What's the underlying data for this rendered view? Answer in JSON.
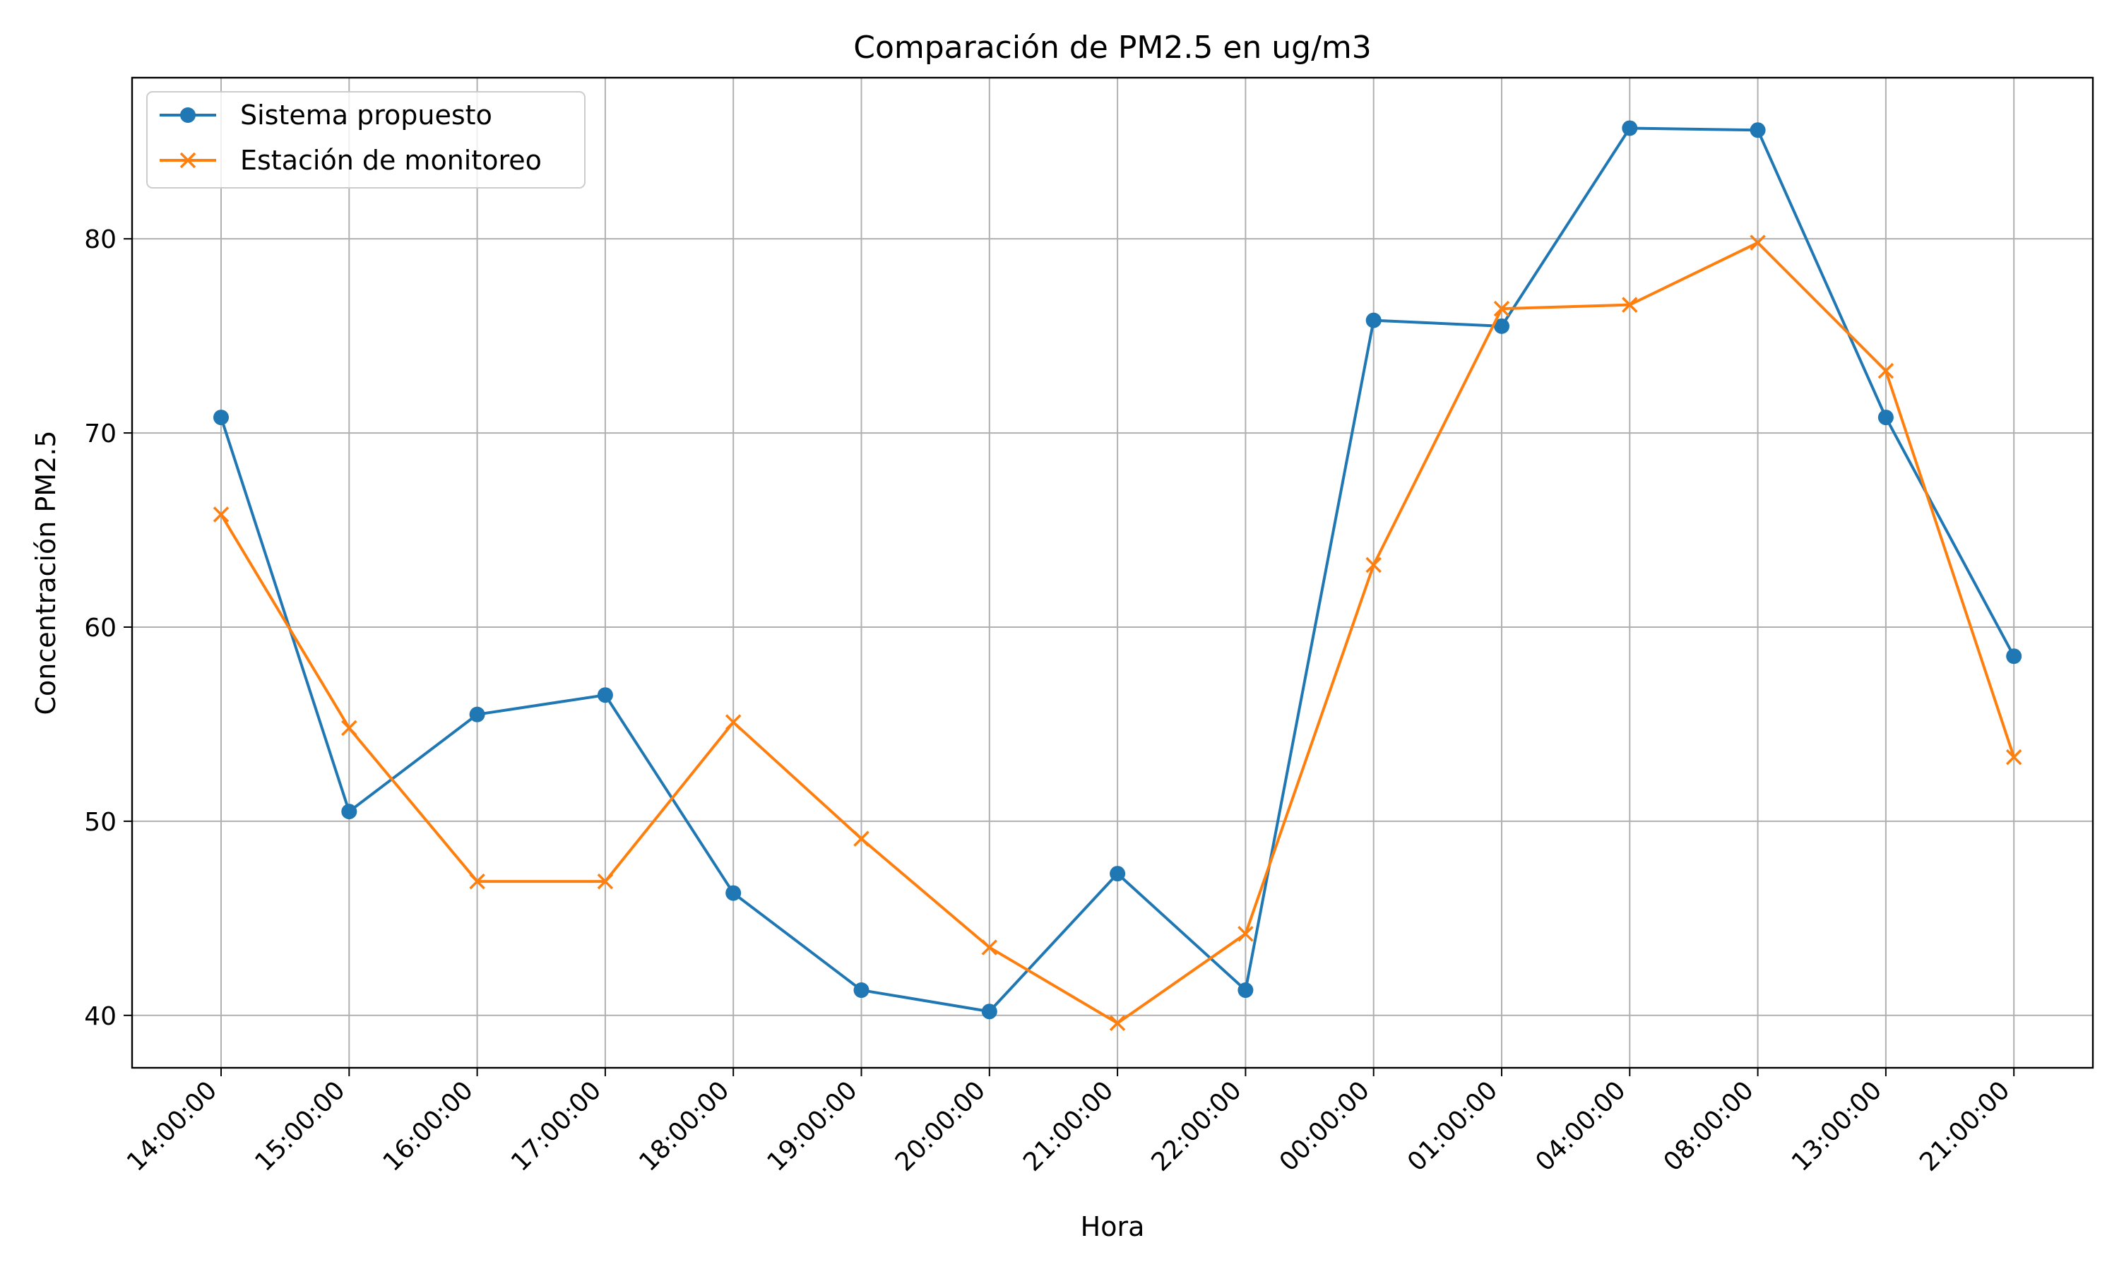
{
  "chart_data": {
    "type": "line",
    "title": "Comparación de PM2.5 en ug/m3",
    "xlabel": "Hora",
    "ylabel": "Concentración PM2.5",
    "categories": [
      "14:00:00",
      "15:00:00",
      "16:00:00",
      "17:00:00",
      "18:00:00",
      "19:00:00",
      "20:00:00",
      "21:00:00",
      "22:00:00",
      "00:00:00",
      "01:00:00",
      "04:00:00",
      "08:00:00",
      "13:00:00",
      "21:00:00"
    ],
    "yticks": [
      40,
      50,
      60,
      70,
      80
    ],
    "ylim": [
      37.3,
      88.3
    ],
    "grid": true,
    "legend_position": "top-left",
    "series": [
      {
        "name": "Sistema propuesto",
        "color": "#1f77b4",
        "marker": "circle",
        "values": [
          70.8,
          50.5,
          55.5,
          56.5,
          46.3,
          41.3,
          40.2,
          47.3,
          41.3,
          75.8,
          75.5,
          85.7,
          85.6,
          70.8,
          58.5
        ]
      },
      {
        "name": "Estación de monitoreo",
        "color": "#ff7f0e",
        "marker": "x",
        "values": [
          65.8,
          54.8,
          46.9,
          46.9,
          55.1,
          49.1,
          43.5,
          39.6,
          44.2,
          63.2,
          76.4,
          76.6,
          79.8,
          73.2,
          53.3
        ]
      }
    ]
  }
}
